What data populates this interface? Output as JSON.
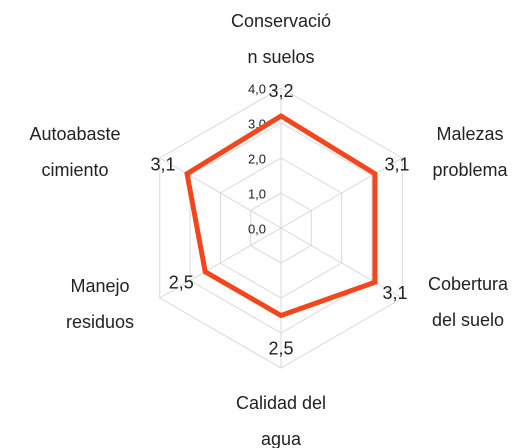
{
  "chart_data": {
    "type": "radar",
    "categories": [
      [
        "Conservació",
        "n suelos"
      ],
      [
        "Malezas",
        "problema"
      ],
      [
        "Cobertura",
        "del suelo"
      ],
      [
        "Calidad del",
        "agua"
      ],
      [
        "Manejo",
        "residuos"
      ],
      [
        "Autoabaste",
        "cimiento"
      ]
    ],
    "values": [
      3.2,
      3.1,
      3.1,
      2.5,
      2.5,
      3.1
    ],
    "value_labels": [
      "3,2",
      "3,1",
      "3,1",
      "2,5",
      "2,5",
      "3,1"
    ],
    "color": "#f2461c",
    "rlim": [
      0,
      4
    ],
    "rticks": [
      {
        "value": 0,
        "label": "0,0"
      },
      {
        "value": 1,
        "label": "1,0"
      },
      {
        "value": 2,
        "label": "2,0"
      },
      {
        "value": 3,
        "label": "3,0"
      },
      {
        "value": 4,
        "label": "4,0"
      }
    ],
    "grid": true
  }
}
